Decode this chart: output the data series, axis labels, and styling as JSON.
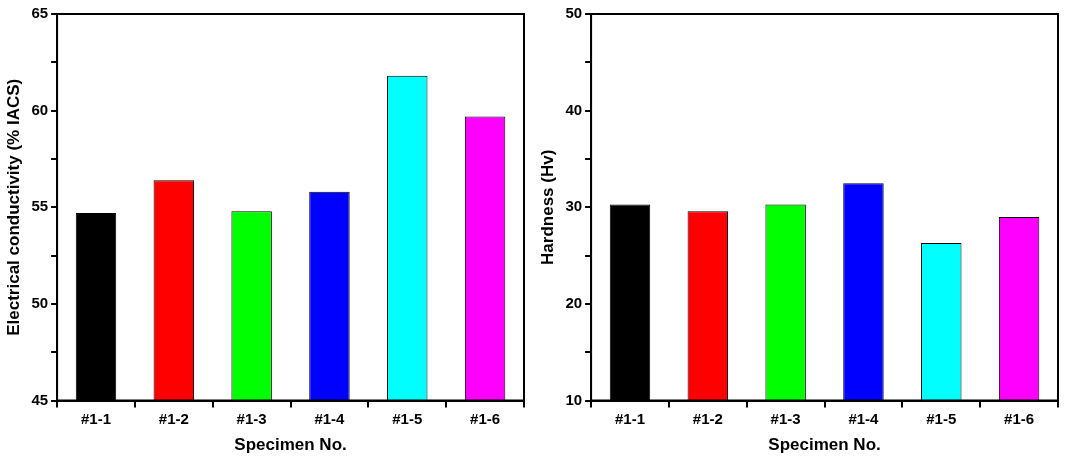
{
  "chart_data": [
    {
      "type": "bar",
      "ylabel": "Electrical conductivity (% IACS)",
      "xlabel": "Specimen No.",
      "categories": [
        "#1-1",
        "#1-2",
        "#1-3",
        "#1-4",
        "#1-5",
        "#1-6"
      ],
      "values": [
        54.7,
        56.4,
        54.8,
        55.8,
        61.8,
        59.7
      ],
      "colors": [
        "#000000",
        "#ff0000",
        "#00ff00",
        "#0000ff",
        "#00ffff",
        "#ff00ff"
      ],
      "ylim": [
        45,
        65
      ],
      "yticks": [
        45,
        {
          "value": 47.5,
          "label": null
        },
        50,
        {
          "value": 52.5,
          "label": null
        },
        55,
        {
          "value": 57.5,
          "label": null
        },
        60,
        {
          "value": 62.5,
          "label": null
        },
        65
      ],
      "grid": false,
      "legend": false
    },
    {
      "type": "bar",
      "ylabel": "Hardness (Hv)",
      "xlabel": "Specimen No.",
      "categories": [
        "#1-1",
        "#1-2",
        "#1-3",
        "#1-4",
        "#1-5",
        "#1-6"
      ],
      "values": [
        30.3,
        29.6,
        30.3,
        32.5,
        26.3,
        29.0
      ],
      "colors": [
        "#000000",
        "#ff0000",
        "#00ff00",
        "#0000ff",
        "#00ffff",
        "#ff00ff"
      ],
      "ylim": [
        10,
        50
      ],
      "yticks": [
        10,
        {
          "value": 15,
          "label": null
        },
        20,
        {
          "value": 25,
          "label": null
        },
        30,
        {
          "value": 35,
          "label": null
        },
        40,
        {
          "value": 45,
          "label": null
        },
        50
      ],
      "grid": false,
      "legend": false
    }
  ]
}
